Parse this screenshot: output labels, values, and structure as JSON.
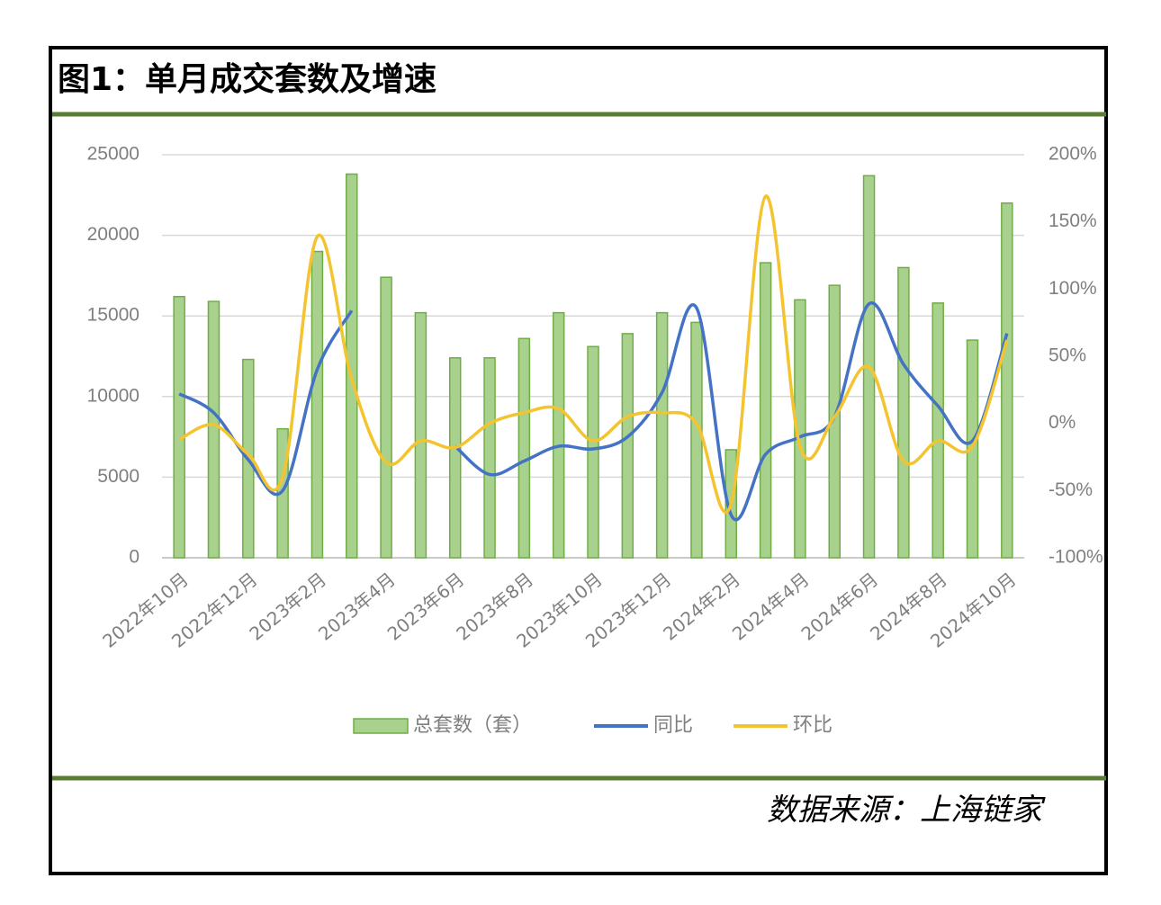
{
  "chart_data": {
    "type": "bar-line",
    "title": "图1：单月成交套数及增速",
    "source": "数据来源：上海链家",
    "categories": [
      "2022年10月",
      null,
      "2022年12月",
      null,
      "2023年2月",
      null,
      "2023年4月",
      null,
      "2023年6月",
      null,
      "2023年8月",
      null,
      "2023年10月",
      null,
      "2023年12月",
      null,
      "2024年2月",
      null,
      "2024年4月",
      null,
      "2024年6月",
      null,
      "2024年8月",
      null,
      "2024年10月"
    ],
    "series": [
      {
        "name": "总套数（套）",
        "type": "bar",
        "color": "#a9d18e",
        "stroke": "#70ad47",
        "values": [
          16200,
          15900,
          12300,
          8000,
          19000,
          23800,
          17400,
          15200,
          12400,
          12400,
          13600,
          15200,
          13100,
          13900,
          15200,
          14600,
          6700,
          18300,
          16000,
          16900,
          23700,
          18000,
          15800,
          13500,
          22000
        ]
      },
      {
        "name": "同比",
        "type": "line",
        "axis": "y2",
        "color": "#4472c4",
        "values": [
          22,
          8,
          -27,
          -50,
          40,
          84,
          null,
          null,
          -17,
          -38,
          -28,
          -17,
          -19,
          -10,
          23,
          86,
          -68,
          -23,
          -10,
          5,
          89,
          44,
          13,
          -13,
          67
        ]
      },
      {
        "name": "环比",
        "type": "line",
        "axis": "y2",
        "color": "#f4c430",
        "values": [
          -12,
          -1,
          -23,
          -40,
          139,
          33,
          -29,
          -13,
          -18,
          0,
          8,
          11,
          -13,
          5,
          8,
          0,
          -60,
          169,
          -17,
          5,
          42,
          -28,
          -13,
          -17,
          62
        ]
      }
    ],
    "ylim": [
      0,
      25000
    ],
    "yticks": [
      0,
      5000,
      10000,
      15000,
      20000,
      25000
    ],
    "y2lim": [
      -100,
      200
    ],
    "y2ticks": [
      {
        "value": -100,
        "label": "-100%"
      },
      {
        "value": -50,
        "label": "-50%"
      },
      {
        "value": 0,
        "label": "0%"
      },
      {
        "value": 50,
        "label": "50%"
      },
      {
        "value": 100,
        "label": "100%"
      },
      {
        "value": 150,
        "label": "150%"
      },
      {
        "value": 200,
        "label": "200%"
      }
    ],
    "grid": true
  }
}
